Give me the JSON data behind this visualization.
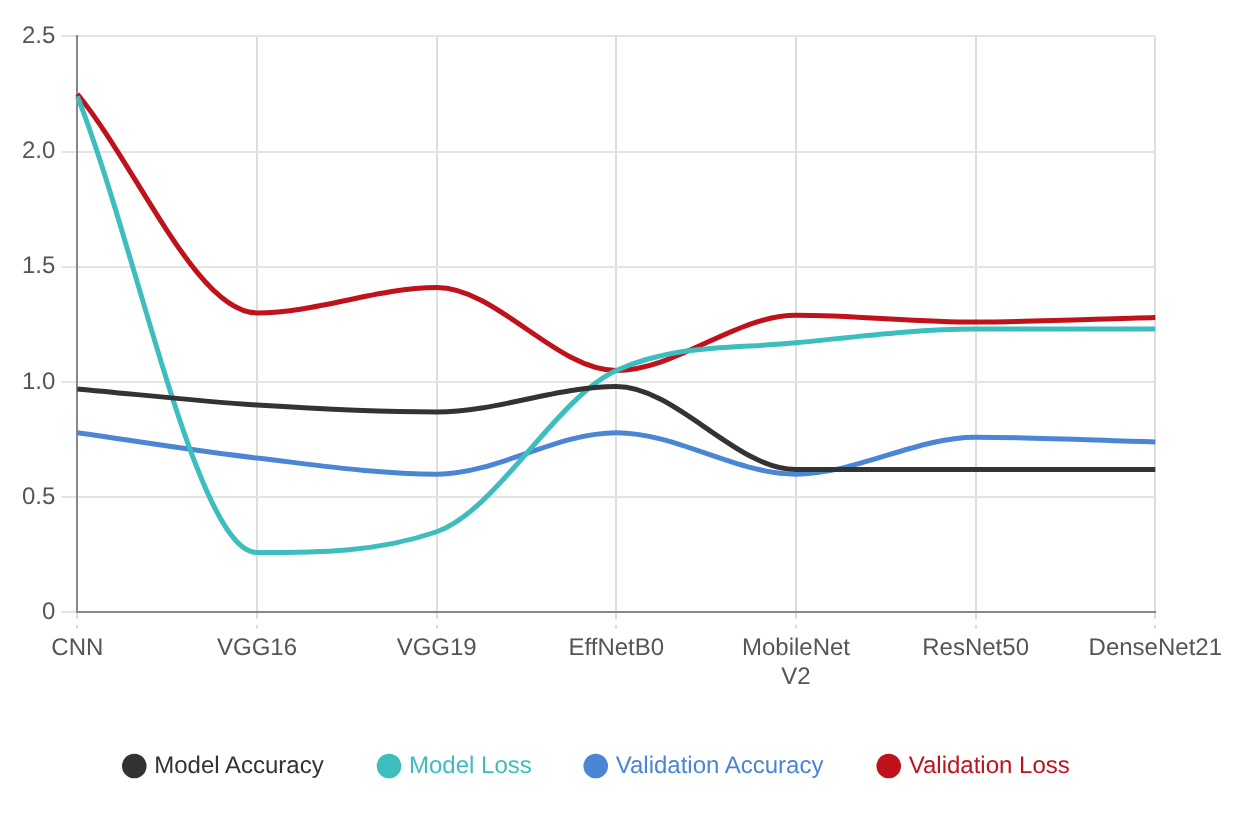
{
  "chart_data": {
    "type": "line",
    "categories": [
      "CNN",
      "VGG16",
      "VGG19",
      "EffNetB0",
      "MobileNet V2",
      "ResNet50",
      "DenseNet21"
    ],
    "series": [
      {
        "name": "Model Accuracy",
        "color": "#333333",
        "values": [
          0.97,
          0.9,
          0.87,
          0.98,
          0.62,
          0.62,
          0.62
        ]
      },
      {
        "name": "Model Loss",
        "color": "#3dbdbd",
        "values": [
          2.24,
          0.26,
          0.35,
          1.05,
          1.17,
          1.23,
          1.23
        ]
      },
      {
        "name": "Validation Accuracy",
        "color": "#4a86d4",
        "values": [
          0.78,
          0.67,
          0.6,
          0.78,
          0.6,
          0.76,
          0.74
        ]
      },
      {
        "name": "Validation Loss",
        "color": "#c0121b",
        "values": [
          2.25,
          1.3,
          1.41,
          1.05,
          1.29,
          1.26,
          1.28
        ]
      }
    ],
    "ylim": [
      0,
      2.5
    ],
    "yticks": [
      {
        "value": 0,
        "label": "0"
      },
      {
        "value": 0.5,
        "label": "0.5"
      },
      {
        "value": 1,
        "label": "1.0"
      },
      {
        "value": 1.5,
        "label": "1.5"
      },
      {
        "value": 2,
        "label": "2.0"
      },
      {
        "value": 2.5,
        "label": "2.5"
      }
    ],
    "grid": true,
    "legend": "bottom",
    "marker": "none",
    "line_style": "solid"
  }
}
